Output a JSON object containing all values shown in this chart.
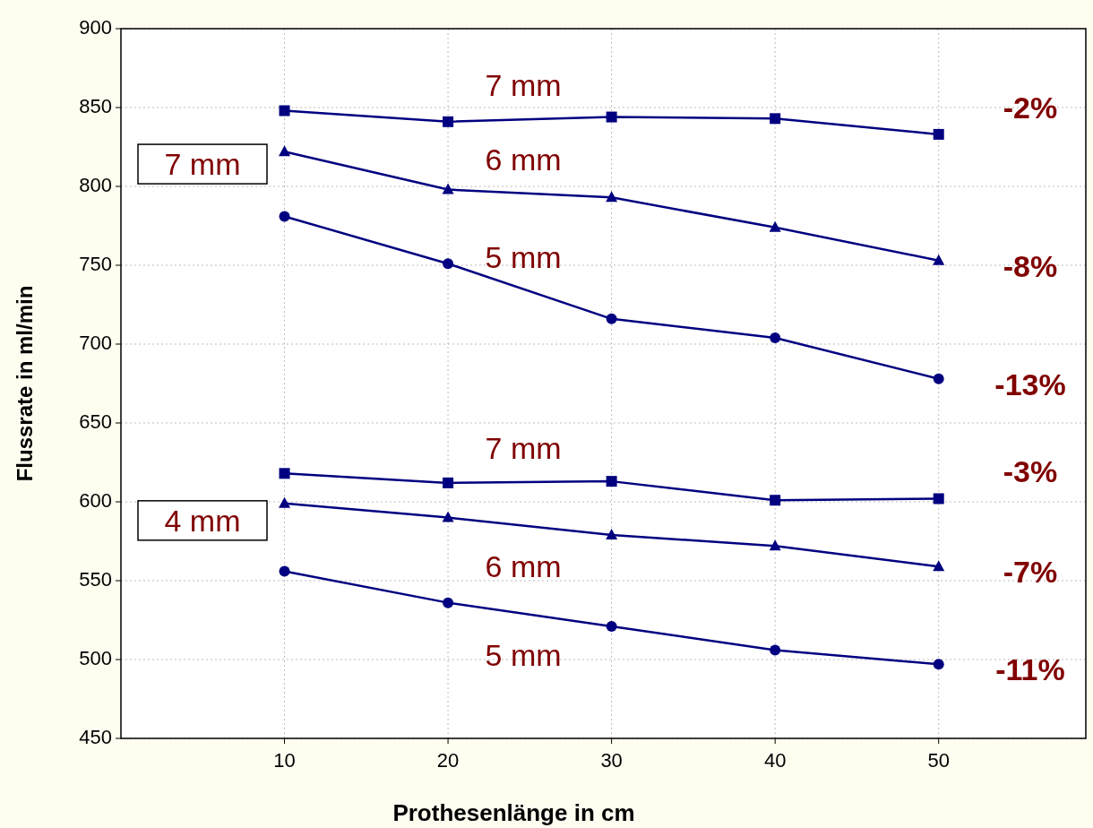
{
  "chart_data": {
    "type": "line",
    "xlabel": "Prothesenlänge in cm",
    "ylabel": "Flussrate in ml/min",
    "x": [
      10,
      20,
      30,
      40,
      50
    ],
    "xlim": [
      0,
      59
    ],
    "xticks": [
      10,
      20,
      30,
      40,
      50
    ],
    "ylim": [
      450,
      900
    ],
    "yticks": [
      450,
      500,
      550,
      600,
      650,
      700,
      750,
      800,
      850,
      900
    ],
    "grid": true,
    "line_style": "solid",
    "series": [
      {
        "name": "7 mm",
        "color": "#000080",
        "marker": "square",
        "values": [
          848,
          841,
          844,
          843,
          833
        ]
      },
      {
        "name": "6 mm",
        "color": "#000080",
        "marker": "triangle",
        "values": [
          822,
          798,
          793,
          774,
          753
        ]
      },
      {
        "name": "5 mm",
        "color": "#000080",
        "marker": "circle",
        "values": [
          781,
          751,
          716,
          704,
          678
        ]
      },
      {
        "name": "7 mm",
        "color": "#000080",
        "marker": "square",
        "values": [
          618,
          612,
          613,
          601,
          602
        ]
      },
      {
        "name": "6 mm",
        "color": "#000080",
        "marker": "triangle",
        "values": [
          599,
          590,
          579,
          572,
          559
        ]
      },
      {
        "name": "5 mm",
        "color": "#000080",
        "marker": "circle",
        "values": [
          556,
          536,
          521,
          506,
          497
        ]
      }
    ],
    "annotations": [
      "-2%",
      "-8%",
      "-13%",
      "-3%",
      "-7%",
      "-11%",
      "7 mm",
      "4 mm"
    ]
  }
}
